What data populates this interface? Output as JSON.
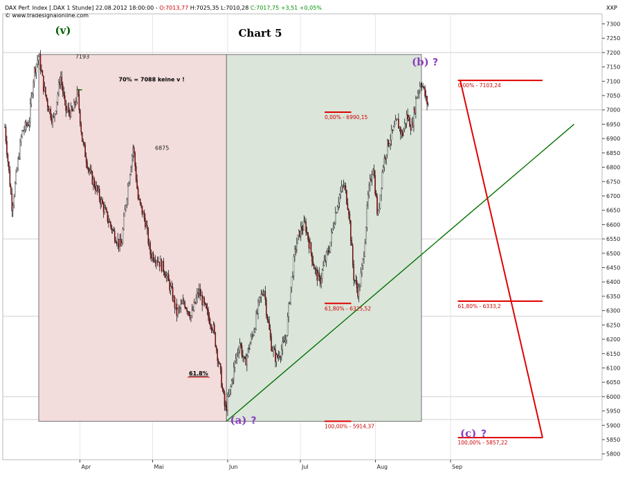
{
  "header": {
    "instrument": "DAX Perf. Index [.DAX 1 Stunde] 22.08.2012 18:00:00 - ",
    "open": "O:7013,77",
    "hlc": " H:7025,35 L:7010,28 ",
    "close": "C:7017,75 +3,51 +0,05%",
    "website": "© www.tradesignalonline.com",
    "symbol": "XXP"
  },
  "colors": {
    "down_zone": "#f2dcdc",
    "up_zone": "#dbe5da",
    "trendline": "#007000",
    "fib": "#e00000",
    "wave_v": "#006400",
    "wave_abc": "#8a3fbf",
    "candle": "#000000",
    "accent": "#b00000"
  },
  "chart_data": {
    "type": "candlestick",
    "title": "Chart 5",
    "x_axis": {
      "labels": [
        "Apr",
        "Mai",
        "Jun",
        "Jul",
        "Aug",
        "Sep"
      ],
      "days": [
        31,
        61,
        92,
        122,
        153,
        184
      ]
    },
    "y_axis": {
      "min": 5780,
      "max": 7335,
      "ticks": [
        5800,
        5850,
        5900,
        5950,
        6000,
        6050,
        6100,
        6150,
        6200,
        6250,
        6300,
        6350,
        6400,
        6450,
        6500,
        6550,
        6600,
        6650,
        6700,
        6750,
        6800,
        6850,
        6900,
        6950,
        7000,
        7050,
        7100,
        7150,
        7200,
        7250,
        7300
      ],
      "tick_labels": [
        "5800",
        "5850",
        "5900",
        "5950",
        "6000",
        "6050",
        "6100",
        "6150",
        "6200",
        "6250",
        "6300",
        "6350",
        "6400",
        "6450",
        "6500",
        "6550",
        "6600",
        "6650",
        "6700",
        "6750",
        "6800",
        "6850",
        "6900",
        "6950",
        "7000",
        "7050",
        "7100",
        "7150",
        "7200",
        "7250",
        "7300"
      ]
    },
    "gridlines": [
      5920,
      6000,
      6280,
      6550,
      7000,
      7200
    ],
    "price_path": [
      [
        0,
        6940
      ],
      [
        3,
        6660
      ],
      [
        7,
        6920
      ],
      [
        10,
        6960
      ],
      [
        12,
        7130
      ],
      [
        14,
        7193
      ],
      [
        16,
        7080
      ],
      [
        18,
        7010
      ],
      [
        20,
        6960
      ],
      [
        23,
        7120
      ],
      [
        25,
        7000
      ],
      [
        28,
        6990
      ],
      [
        30,
        7060
      ],
      [
        32,
        6890
      ],
      [
        35,
        6780
      ],
      [
        38,
        6720
      ],
      [
        42,
        6630
      ],
      [
        45,
        6570
      ],
      [
        48,
        6520
      ],
      [
        50,
        6680
      ],
      [
        53,
        6875
      ],
      [
        55,
        6690
      ],
      [
        58,
        6610
      ],
      [
        60,
        6500
      ],
      [
        63,
        6480
      ],
      [
        66,
        6440
      ],
      [
        69,
        6360
      ],
      [
        71,
        6290
      ],
      [
        74,
        6330
      ],
      [
        77,
        6280
      ],
      [
        80,
        6370
      ],
      [
        83,
        6300
      ],
      [
        86,
        6240
      ],
      [
        89,
        6080
      ],
      [
        91,
        5950
      ],
      [
        93,
        6020
      ],
      [
        95,
        6120
      ],
      [
        97,
        6190
      ],
      [
        99,
        6110
      ],
      [
        101,
        6180
      ],
      [
        103,
        6240
      ],
      [
        105,
        6330
      ],
      [
        107,
        6380
      ],
      [
        108,
        6300
      ],
      [
        110,
        6180
      ],
      [
        112,
        6130
      ],
      [
        114,
        6160
      ],
      [
        116,
        6200
      ],
      [
        118,
        6380
      ],
      [
        120,
        6520
      ],
      [
        122,
        6580
      ],
      [
        124,
        6600
      ],
      [
        126,
        6520
      ],
      [
        128,
        6440
      ],
      [
        130,
        6400
      ],
      [
        132,
        6470
      ],
      [
        134,
        6520
      ],
      [
        136,
        6620
      ],
      [
        138,
        6700
      ],
      [
        140,
        6740
      ],
      [
        142,
        6650
      ],
      [
        144,
        6420
      ],
      [
        146,
        6360
      ],
      [
        148,
        6480
      ],
      [
        150,
        6700
      ],
      [
        152,
        6810
      ],
      [
        154,
        6620
      ],
      [
        156,
        6800
      ],
      [
        158,
        6880
      ],
      [
        160,
        6920
      ],
      [
        162,
        6960
      ],
      [
        164,
        6910
      ],
      [
        166,
        6980
      ],
      [
        168,
        6940
      ],
      [
        170,
        7050
      ],
      [
        172,
        7103
      ],
      [
        174,
        7030
      ],
      [
        175,
        7015
      ]
    ],
    "zones": [
      {
        "name": "down",
        "day_start": 14,
        "day_end": 91.5,
        "price_top": 7193,
        "price_bottom": 5914
      },
      {
        "name": "up",
        "day_start": 91.5,
        "day_end": 172,
        "price_top": 7193,
        "price_bottom": 5914
      }
    ],
    "trendline": {
      "from": [
        91.5,
        5914
      ],
      "to": [
        235,
        6950
      ]
    },
    "fib_left": [
      {
        "label": "0,00% - 6990,15",
        "price": 6992,
        "day_start": 132,
        "day_end": 143
      },
      {
        "label": "61,80% - 6325,52",
        "price": 6325,
        "day_start": 132,
        "day_end": 143
      },
      {
        "label": "100,00% - 5914,37",
        "price": 5914,
        "day_start": 132,
        "day_end": 143
      }
    ],
    "fib_right": [
      {
        "label": "0,00% - 7103,24",
        "price": 7103,
        "day_start": 187,
        "day_end": 222
      },
      {
        "label": "61,80% - 6333,2",
        "price": 6333,
        "day_start": 187,
        "day_end": 222
      },
      {
        "label": "100,00% - 5857,22",
        "price": 5857,
        "day_start": 187,
        "day_end": 222
      }
    ],
    "projection": [
      [
        188,
        7103
      ],
      [
        222,
        5857
      ]
    ],
    "annotations": {
      "wave_v": {
        "text": "(v)",
        "day": 24,
        "price": 7265
      },
      "peak_7193": {
        "text": "7193",
        "day": 32,
        "price": 7179
      },
      "note_70": {
        "text": "70% = 7088 keine v !",
        "day": 47,
        "price": 7100
      },
      "label_6875": {
        "text": "6875",
        "day": 62,
        "price": 6861
      },
      "fib618": {
        "text": "61.8%",
        "day": 76,
        "price": 6075
      },
      "wave_a": {
        "text": "(a)",
        "day": 93,
        "price": 5905,
        "q": "?"
      },
      "wave_b": {
        "text": "(b)",
        "day": 168,
        "price": 7155,
        "q": "?"
      },
      "wave_c": {
        "text": "(c)",
        "day": 188,
        "price": 5860,
        "q": "?"
      },
      "green_dash": {
        "day": 31,
        "price": 7070
      }
    }
  }
}
